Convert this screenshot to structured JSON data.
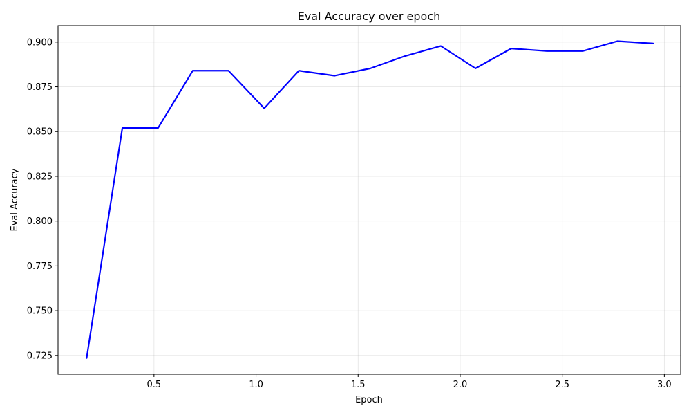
{
  "chart_data": {
    "type": "line",
    "title": "Eval Accuracy over epoch",
    "xlabel": "Epoch",
    "ylabel": "Eval Accuracy",
    "xlim": [
      0.03,
      3.08
    ],
    "ylim": [
      0.7145,
      0.9092
    ],
    "xticks": [
      0.5,
      1.0,
      1.5,
      2.0,
      2.5,
      3.0
    ],
    "xtick_labels": [
      "0.5",
      "1.0",
      "1.5",
      "2.0",
      "2.5",
      "3.0"
    ],
    "yticks": [
      0.725,
      0.75,
      0.775,
      0.8,
      0.825,
      0.85,
      0.875,
      0.9
    ],
    "ytick_labels": [
      "0.725",
      "0.750",
      "0.775",
      "0.800",
      "0.825",
      "0.850",
      "0.875",
      "0.900"
    ],
    "grid": true,
    "legend": false,
    "series": [
      {
        "color": "#0000ff",
        "x": [
          0.17,
          0.345,
          0.52,
          0.69,
          0.865,
          1.04,
          1.21,
          1.385,
          1.56,
          1.73,
          1.905,
          2.075,
          2.25,
          2.425,
          2.6,
          2.77,
          2.945
        ],
        "y": [
          0.7235,
          0.852,
          0.852,
          0.884,
          0.884,
          0.863,
          0.884,
          0.8812,
          0.8853,
          0.8922,
          0.8978,
          0.8853,
          0.8964,
          0.895,
          0.895,
          0.9005,
          0.8992
        ]
      }
    ]
  }
}
